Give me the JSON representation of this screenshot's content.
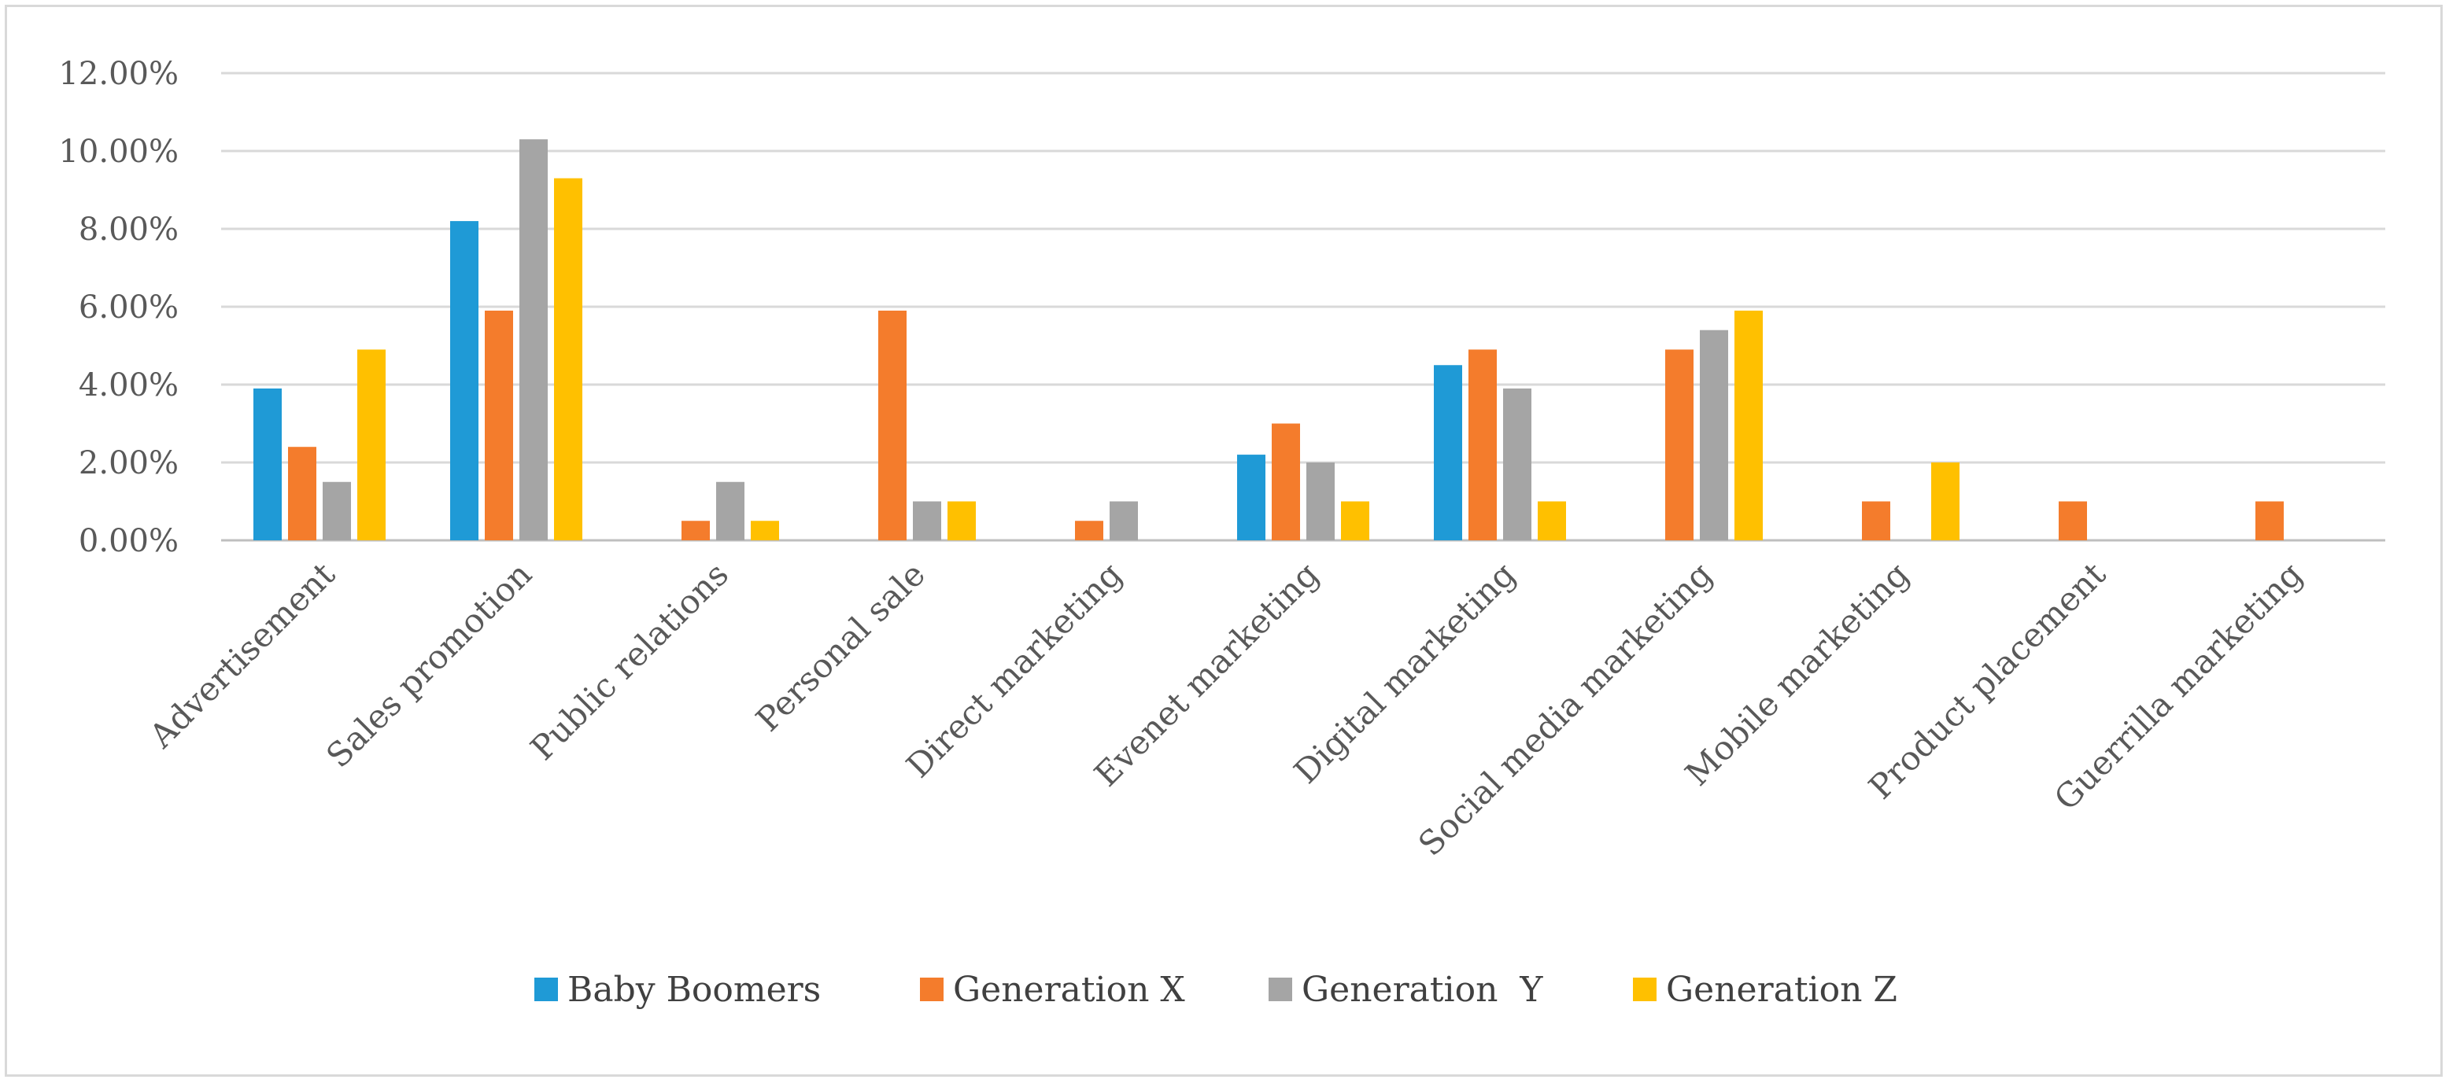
{
  "chart_data": {
    "type": "bar",
    "title": "",
    "xlabel": "",
    "ylabel": "",
    "ylim": [
      0,
      12
    ],
    "y_ticks": [
      0,
      2,
      4,
      6,
      8,
      10,
      12
    ],
    "y_tick_labels": [
      "0.00%",
      "2.00%",
      "4.00%",
      "6.00%",
      "8.00%",
      "10.00%",
      "12.00%"
    ],
    "grid": true,
    "legend_position": "bottom",
    "categories": [
      "Advertisement",
      "Sales promotion",
      "Public relations",
      "Personal sale",
      "Direct marketing",
      "Evenet marketing",
      "Digital marketing",
      "Social media marketing",
      "Mobile marketing",
      "Product placement",
      "Guerrilla marketing"
    ],
    "series": [
      {
        "name": "Baby Boomers",
        "color": "#1f9ad6",
        "values": [
          3.9,
          8.2,
          0,
          0,
          0,
          2.2,
          4.5,
          0,
          0,
          0,
          0
        ]
      },
      {
        "name": "Generation X",
        "color": "#f47c2c",
        "values": [
          2.4,
          5.9,
          0.5,
          5.9,
          0.5,
          3.0,
          4.9,
          4.9,
          1.0,
          1.0,
          1.0
        ]
      },
      {
        "name": "Generation  Y",
        "color": "#a5a5a5",
        "values": [
          1.5,
          10.3,
          1.5,
          1.0,
          1.0,
          2.0,
          3.9,
          5.4,
          0,
          0,
          0
        ]
      },
      {
        "name": "Generation Z",
        "color": "#ffc000",
        "values": [
          4.9,
          9.3,
          0.5,
          1.0,
          0,
          1.0,
          1.0,
          5.9,
          2.0,
          0,
          0
        ]
      }
    ]
  }
}
